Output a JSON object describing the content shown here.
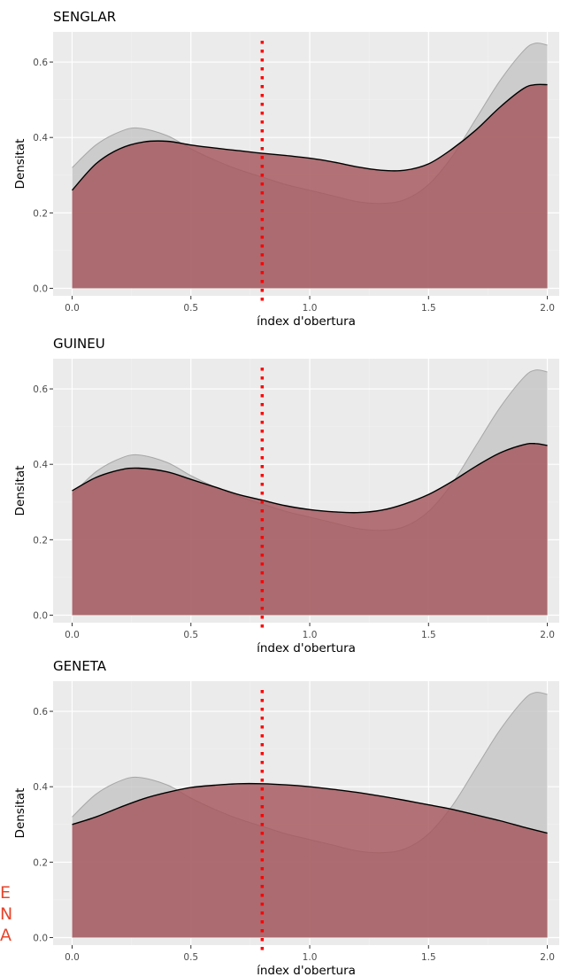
{
  "colors": {
    "panel_background": "#ebebeb",
    "grid_major": "#ffffff",
    "grid_minor": "#f2f2f2",
    "reference_fill": "#c2c2c2",
    "reference_line": "#9a9a9a",
    "species_fill": "#a3565b",
    "species_line": "#000000",
    "threshold_line": "#ff0000",
    "side_letters": "#e8452c"
  },
  "side_letters": [
    "E",
    "N",
    "A"
  ],
  "chart_data": [
    {
      "type": "area",
      "title": "SENGLAR",
      "xlabel": "índex d'obertura",
      "ylabel": "Densitat",
      "xlim": [
        -0.08,
        2.05
      ],
      "ylim": [
        -0.02,
        0.68
      ],
      "x_ticks": [
        0.0,
        0.5,
        1.0,
        1.5,
        2.0
      ],
      "x_tick_labels": [
        "0.0",
        "0.5",
        "1.0",
        "1.5",
        "2.0"
      ],
      "y_ticks": [
        0.0,
        0.2,
        0.4,
        0.6
      ],
      "y_tick_labels": [
        "0.0",
        "0.2",
        "0.4",
        "0.6"
      ],
      "grid": true,
      "vline_x": 0.8,
      "series": [
        {
          "role": "reference",
          "x": [
            0.0,
            0.1,
            0.2,
            0.28,
            0.4,
            0.5,
            0.6,
            0.7,
            0.8,
            0.9,
            1.0,
            1.1,
            1.2,
            1.3,
            1.4,
            1.5,
            1.6,
            1.7,
            1.8,
            1.9,
            1.95,
            2.0
          ],
          "y": [
            0.32,
            0.38,
            0.415,
            0.425,
            0.405,
            0.37,
            0.34,
            0.315,
            0.295,
            0.275,
            0.26,
            0.245,
            0.23,
            0.225,
            0.235,
            0.275,
            0.35,
            0.45,
            0.55,
            0.63,
            0.65,
            0.645
          ]
        },
        {
          "role": "species",
          "x": [
            0.0,
            0.1,
            0.2,
            0.3,
            0.4,
            0.5,
            0.6,
            0.7,
            0.8,
            0.9,
            1.0,
            1.1,
            1.2,
            1.3,
            1.4,
            1.5,
            1.6,
            1.7,
            1.8,
            1.9,
            1.95,
            2.0
          ],
          "y": [
            0.26,
            0.33,
            0.37,
            0.388,
            0.39,
            0.38,
            0.372,
            0.365,
            0.358,
            0.352,
            0.345,
            0.335,
            0.322,
            0.313,
            0.313,
            0.33,
            0.37,
            0.42,
            0.48,
            0.53,
            0.54,
            0.54
          ]
        }
      ]
    },
    {
      "type": "area",
      "title": "GUINEU",
      "xlabel": "índex d'obertura",
      "ylabel": "Densitat",
      "xlim": [
        -0.08,
        2.05
      ],
      "ylim": [
        -0.02,
        0.68
      ],
      "x_ticks": [
        0.0,
        0.5,
        1.0,
        1.5,
        2.0
      ],
      "x_tick_labels": [
        "0.0",
        "0.5",
        "1.0",
        "1.5",
        "2.0"
      ],
      "y_ticks": [
        0.0,
        0.2,
        0.4,
        0.6
      ],
      "y_tick_labels": [
        "0.0",
        "0.2",
        "0.4",
        "0.6"
      ],
      "grid": true,
      "vline_x": 0.8,
      "series": [
        {
          "role": "reference",
          "x": [
            0.0,
            0.1,
            0.2,
            0.28,
            0.4,
            0.5,
            0.6,
            0.7,
            0.8,
            0.9,
            1.0,
            1.1,
            1.2,
            1.3,
            1.4,
            1.5,
            1.6,
            1.7,
            1.8,
            1.9,
            1.95,
            2.0
          ],
          "y": [
            0.32,
            0.38,
            0.415,
            0.425,
            0.405,
            0.37,
            0.34,
            0.315,
            0.295,
            0.275,
            0.26,
            0.245,
            0.23,
            0.225,
            0.235,
            0.275,
            0.35,
            0.45,
            0.55,
            0.63,
            0.65,
            0.645
          ]
        },
        {
          "role": "species",
          "x": [
            0.0,
            0.1,
            0.2,
            0.28,
            0.4,
            0.5,
            0.6,
            0.7,
            0.8,
            0.9,
            1.0,
            1.1,
            1.2,
            1.3,
            1.4,
            1.5,
            1.6,
            1.7,
            1.8,
            1.9,
            1.95,
            2.0
          ],
          "y": [
            0.33,
            0.365,
            0.385,
            0.39,
            0.38,
            0.36,
            0.34,
            0.32,
            0.305,
            0.29,
            0.28,
            0.274,
            0.272,
            0.278,
            0.295,
            0.32,
            0.355,
            0.395,
            0.43,
            0.452,
            0.455,
            0.45
          ]
        }
      ]
    },
    {
      "type": "area",
      "title": "GENETA",
      "xlabel": "índex d'obertura",
      "ylabel": "Densitat",
      "xlim": [
        -0.08,
        2.05
      ],
      "ylim": [
        -0.02,
        0.68
      ],
      "x_ticks": [
        0.0,
        0.5,
        1.0,
        1.5,
        2.0
      ],
      "x_tick_labels": [
        "0.0",
        "0.5",
        "1.0",
        "1.5",
        "2.0"
      ],
      "y_ticks": [
        0.0,
        0.2,
        0.4,
        0.6
      ],
      "y_tick_labels": [
        "0.0",
        "0.2",
        "0.4",
        "0.6"
      ],
      "grid": true,
      "vline_x": 0.8,
      "series": [
        {
          "role": "reference",
          "x": [
            0.0,
            0.1,
            0.2,
            0.28,
            0.4,
            0.5,
            0.6,
            0.7,
            0.8,
            0.9,
            1.0,
            1.1,
            1.2,
            1.3,
            1.4,
            1.5,
            1.6,
            1.7,
            1.8,
            1.9,
            1.95,
            2.0
          ],
          "y": [
            0.32,
            0.38,
            0.415,
            0.425,
            0.405,
            0.37,
            0.34,
            0.315,
            0.295,
            0.275,
            0.26,
            0.245,
            0.23,
            0.225,
            0.235,
            0.275,
            0.35,
            0.45,
            0.55,
            0.63,
            0.65,
            0.645
          ]
        },
        {
          "role": "species",
          "x": [
            0.0,
            0.1,
            0.2,
            0.3,
            0.4,
            0.5,
            0.6,
            0.7,
            0.8,
            0.9,
            1.0,
            1.1,
            1.2,
            1.3,
            1.4,
            1.5,
            1.6,
            1.7,
            1.8,
            1.9,
            2.0
          ],
          "y": [
            0.3,
            0.32,
            0.345,
            0.368,
            0.385,
            0.398,
            0.404,
            0.408,
            0.408,
            0.405,
            0.4,
            0.393,
            0.385,
            0.375,
            0.364,
            0.352,
            0.34,
            0.325,
            0.31,
            0.293,
            0.277
          ]
        }
      ]
    }
  ]
}
